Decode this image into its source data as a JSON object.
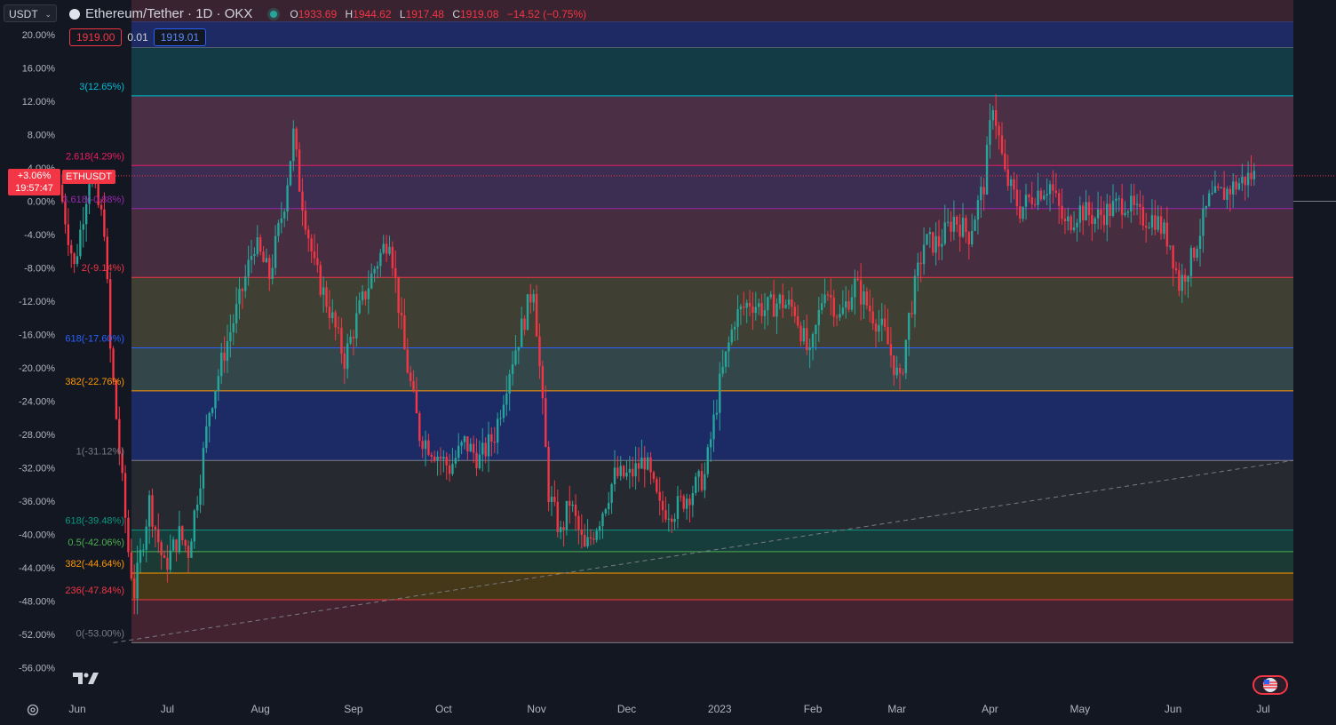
{
  "toolbar": {
    "currency": "USDT"
  },
  "symbol": {
    "title": "Ethereum/Tether · 1D · OKX"
  },
  "ohlc": {
    "o_label": "O",
    "o": "1933.69",
    "h_label": "H",
    "h": "1944.62",
    "l_label": "L",
    "l": "1917.48",
    "c_label": "C",
    "c": "1919.08",
    "change": "−14.52 (−0.75%)"
  },
  "trade": {
    "sell": "1919.00",
    "spread": "0.01",
    "buy": "1919.01"
  },
  "last_price": {
    "percent": "+3.06%",
    "countdown": "19:57:47",
    "symbol": "ETHUSDT"
  },
  "colors": {
    "up": "#26a69a",
    "down": "#f23645",
    "background": "#131722",
    "grid": "#1e222d"
  },
  "chart_data": {
    "type": "candlestick",
    "y_axis": {
      "unit": "percent",
      "ylim": [
        -58,
        24
      ],
      "ticks": [
        20,
        16,
        12,
        8,
        4,
        0,
        -4,
        -8,
        -12,
        -16,
        -20,
        -24,
        -28,
        -32,
        -36,
        -40,
        -44,
        -48,
        -52,
        -56
      ],
      "tick_labels": [
        "20.00%",
        "16.00%",
        "12.00%",
        "8.00%",
        "4.00%",
        "0.00%",
        "-4.00%",
        "-8.00%",
        "-12.00%",
        "-16.00%",
        "-20.00%",
        "-24.00%",
        "-28.00%",
        "-32.00%",
        "-36.00%",
        "-40.00%",
        "-44.00%",
        "-48.00%",
        "-52.00%",
        "-56.00%"
      ]
    },
    "x_axis": {
      "labels": [
        "Jun",
        "Jul",
        "Aug",
        "Sep",
        "Oct",
        "Nov",
        "Dec",
        "2023",
        "Feb",
        "Mar",
        "Apr",
        "May",
        "Jun",
        "Jul"
      ],
      "label_days": [
        0,
        30,
        61,
        92,
        122,
        153,
        183,
        214,
        245,
        273,
        304,
        334,
        365,
        395
      ],
      "range_days": [
        -5,
        405
      ]
    },
    "current_value": 3.06,
    "fib_levels": [
      {
        "value": 21.5,
        "label": "",
        "color": "#3f51b5",
        "fill": "#1d2a63"
      },
      {
        "value": 18.5,
        "label": "",
        "color": "#787b86",
        "fill": "#2a2c33"
      },
      {
        "value": 12.65,
        "label": "3(12.65%)",
        "color": "#00bcd4",
        "fill": "#133b45"
      },
      {
        "value": 4.29,
        "label": "2.618(4.29%)",
        "color": "#e91e63",
        "fill": "#4a2f45"
      },
      {
        "value": -0.88,
        "label": "3.618(-0.88%)",
        "color": "#9c27b0",
        "fill": "#3c2d52"
      },
      {
        "value": -9.14,
        "label": "2(-9.14%)",
        "color": "#f23645",
        "fill": "#472d40"
      },
      {
        "value": -17.6,
        "label": "618(-17.60%)",
        "color": "#2962ff",
        "fill": "#3f4033"
      },
      {
        "value": -22.76,
        "label": "382(-22.76%)",
        "color": "#ff9800",
        "fill": "#33474a"
      },
      {
        "value": -31.12,
        "label": "1(-31.12%)",
        "color": "#787b86",
        "fill": "#1c2b66"
      },
      {
        "value": -39.48,
        "label": "618(-39.48%)",
        "color": "#089981",
        "fill": "#26292f"
      },
      {
        "value": -42.06,
        "label": "0.5(-42.06%)",
        "color": "#4caf50",
        "fill": "#163d3b"
      },
      {
        "value": -44.64,
        "label": "382(-44.64%)",
        "color": "#ff9800",
        "fill": "#1a3a33"
      },
      {
        "value": -47.84,
        "label": "236(-47.84%)",
        "color": "#f23645",
        "fill": "#453818"
      },
      {
        "value": -53.0,
        "label": "0(-53.00%)",
        "color": "#787b86",
        "fill": "#43232f"
      }
    ],
    "trend_line": {
      "from": [
        12,
        -53.0
      ],
      "to": [
        405,
        -31.12
      ],
      "style": "dashed"
    },
    "ohlc_path": [
      [
        -5,
        2
      ],
      [
        0,
        -8
      ],
      [
        5,
        3
      ],
      [
        10,
        -3
      ],
      [
        12,
        -18
      ],
      [
        15,
        -30
      ],
      [
        18,
        -42
      ],
      [
        20,
        -47
      ],
      [
        25,
        -36
      ],
      [
        30,
        -44
      ],
      [
        35,
        -40
      ],
      [
        38,
        -42
      ],
      [
        42,
        -33
      ],
      [
        45,
        -25
      ],
      [
        50,
        -18
      ],
      [
        55,
        -12
      ],
      [
        60,
        -5
      ],
      [
        65,
        -9
      ],
      [
        70,
        0
      ],
      [
        73,
        8
      ],
      [
        75,
        2
      ],
      [
        80,
        -8
      ],
      [
        85,
        -13
      ],
      [
        90,
        -19
      ],
      [
        95,
        -13
      ],
      [
        100,
        -8
      ],
      [
        105,
        -4
      ],
      [
        110,
        -18
      ],
      [
        115,
        -28
      ],
      [
        120,
        -30
      ],
      [
        125,
        -32
      ],
      [
        130,
        -29
      ],
      [
        135,
        -31
      ],
      [
        140,
        -28
      ],
      [
        145,
        -20
      ],
      [
        150,
        -14
      ],
      [
        153,
        -10
      ],
      [
        155,
        -20
      ],
      [
        158,
        -35
      ],
      [
        162,
        -40
      ],
      [
        165,
        -36
      ],
      [
        170,
        -42
      ],
      [
        175,
        -38
      ],
      [
        180,
        -33
      ],
      [
        185,
        -33
      ],
      [
        190,
        -31
      ],
      [
        195,
        -37
      ],
      [
        200,
        -37
      ],
      [
        205,
        -35
      ],
      [
        210,
        -33
      ],
      [
        215,
        -22
      ],
      [
        220,
        -14
      ],
      [
        225,
        -12
      ],
      [
        230,
        -13
      ],
      [
        235,
        -12
      ],
      [
        240,
        -13
      ],
      [
        245,
        -19
      ],
      [
        250,
        -10
      ],
      [
        255,
        -14
      ],
      [
        260,
        -10
      ],
      [
        265,
        -13
      ],
      [
        270,
        -16
      ],
      [
        275,
        -22
      ],
      [
        278,
        -14
      ],
      [
        283,
        -5
      ],
      [
        288,
        -5
      ],
      [
        293,
        -2
      ],
      [
        298,
        -4
      ],
      [
        303,
        2
      ],
      [
        306,
        12
      ],
      [
        310,
        3
      ],
      [
        315,
        -1
      ],
      [
        320,
        1
      ],
      [
        325,
        2
      ],
      [
        330,
        -3
      ],
      [
        335,
        -1
      ],
      [
        340,
        -2
      ],
      [
        345,
        -1
      ],
      [
        350,
        0
      ],
      [
        355,
        -2
      ],
      [
        360,
        -2
      ],
      [
        365,
        -5
      ],
      [
        368,
        -10
      ],
      [
        372,
        -7
      ],
      [
        378,
        0
      ],
      [
        383,
        1
      ],
      [
        387,
        2
      ],
      [
        392,
        3.06
      ]
    ]
  }
}
